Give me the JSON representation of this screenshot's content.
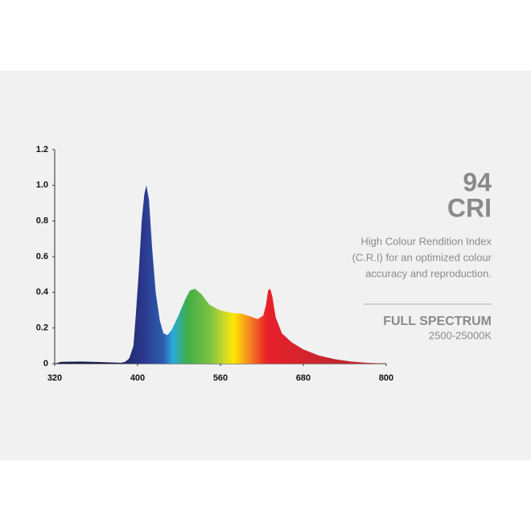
{
  "chart_data": {
    "type": "area",
    "x": [
      320,
      326,
      345,
      369,
      384,
      388,
      392,
      396,
      398,
      402,
      408,
      413,
      417,
      422,
      428,
      435,
      443,
      450,
      458,
      466,
      479,
      492,
      501,
      511,
      523,
      539,
      558,
      576,
      591,
      603,
      614,
      622,
      626,
      629,
      632,
      635,
      640,
      649,
      663,
      680,
      703,
      726,
      749,
      771,
      788,
      800
    ],
    "values": [
      0,
      0.01,
      0.012,
      0.008,
      0.005,
      0.01,
      0.03,
      0.1,
      0.25,
      0.5,
      0.8,
      0.95,
      1.0,
      0.92,
      0.65,
      0.4,
      0.24,
      0.17,
      0.16,
      0.19,
      0.27,
      0.36,
      0.41,
      0.42,
      0.39,
      0.33,
      0.3,
      0.285,
      0.28,
      0.265,
      0.25,
      0.27,
      0.33,
      0.41,
      0.42,
      0.38,
      0.26,
      0.17,
      0.12,
      0.08,
      0.045,
      0.025,
      0.012,
      0.005,
      0.002,
      0
    ],
    "xlim": [
      320,
      800
    ],
    "xticks": [
      320,
      400,
      560,
      680,
      800
    ],
    "ylim": [
      0,
      1.2
    ],
    "yticks": [
      0,
      0.2,
      0.4,
      0.6,
      0.8,
      {
        "value": 1,
        "label": "1.0"
      },
      1.2
    ],
    "grid": false
  },
  "panel": {
    "value": "94",
    "unit": "CRI",
    "description": [
      "High Colour Rendition Index",
      "(C.R.I) for an optimized colour",
      "accuracy and reproduction."
    ],
    "heading": "FULL SPECTRUM",
    "range": "2500-25000K"
  }
}
